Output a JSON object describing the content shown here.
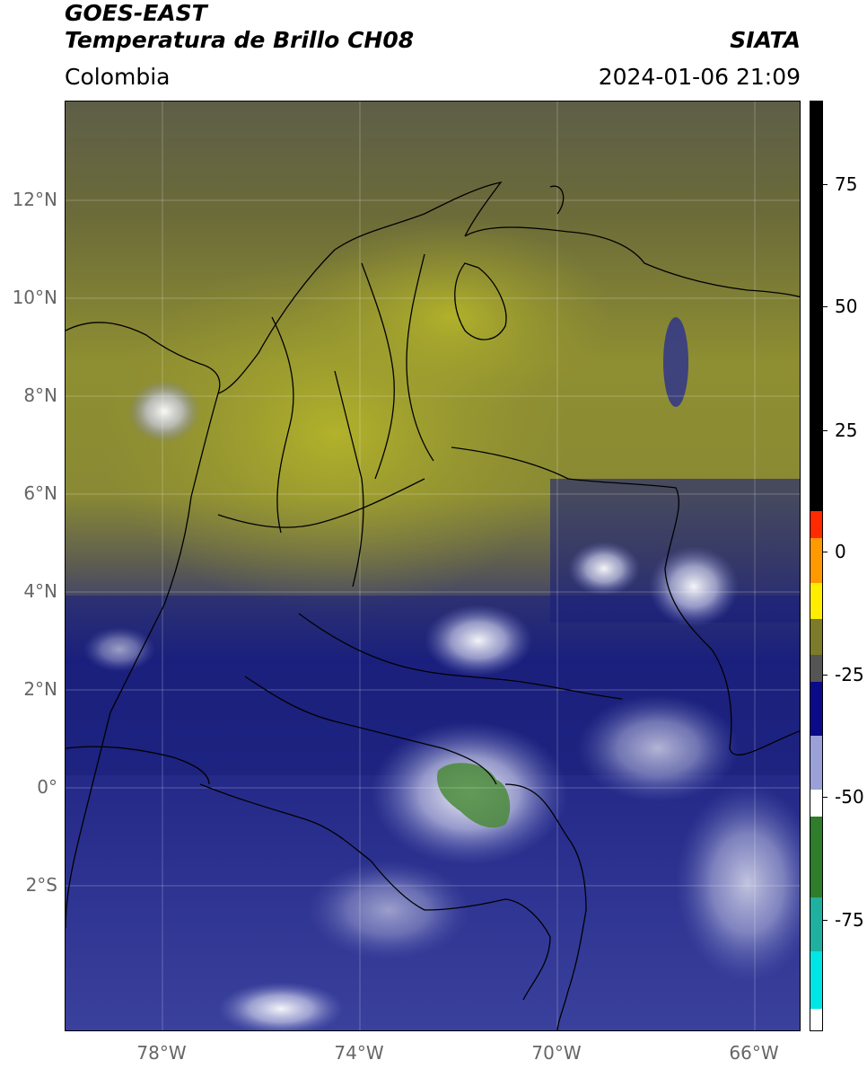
{
  "header": {
    "satellite": "GOES-EAST",
    "product": "Temperatura de Brillo CH08",
    "region": "Colombia",
    "agency": "SIATA",
    "datetime": "2024-01-06 21:09"
  },
  "axes": {
    "lat_labels": [
      "12°N",
      "10°N",
      "8°N",
      "6°N",
      "4°N",
      "2°N",
      "0°",
      "2°S"
    ],
    "lon_labels": [
      "78°W",
      "74°W",
      "70°W",
      "66°W"
    ]
  },
  "colorbar": {
    "ticks": [
      "75",
      "50",
      "25",
      "0",
      "-25",
      "-50",
      "-75"
    ],
    "colors": {
      "black": "#000000",
      "red": "#ff2a00",
      "orange": "#ff9900",
      "yellow": "#ffee00",
      "olive": "#7b7b2a",
      "gray": "#555555",
      "navy": "#0a0a8a",
      "blue_light": "#9aa0d8",
      "white": "#ffffff",
      "green": "#2f7d2a",
      "teal": "#1fb0a0",
      "cyan": "#00e5e5"
    }
  },
  "map_colors": {
    "yellow_olive": "#a8a82c",
    "olive_dark": "#6d6d36",
    "gray_olive": "#5b5b4c",
    "navy": "#1a1f7a",
    "blue_mid": "#3d44a0",
    "white_cloud": "#e8e8f4",
    "green_cold": "#4a8a3a"
  }
}
